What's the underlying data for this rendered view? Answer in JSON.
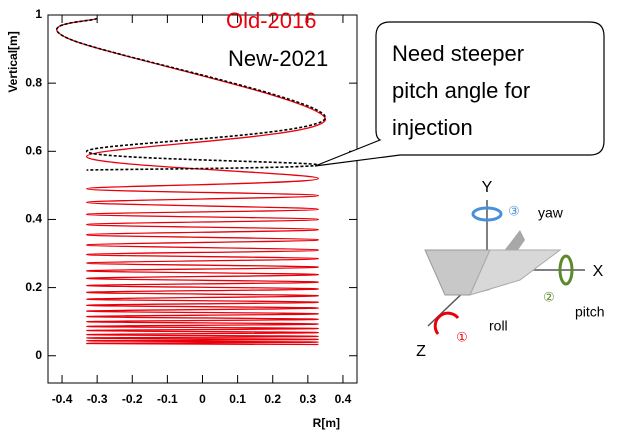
{
  "chart_data": {
    "type": "line",
    "legend": [
      "Old-2016",
      "New-2021"
    ],
    "xlabel": "R[m]",
    "ylabel": "Vertical[m]",
    "xlim": [
      -0.44,
      0.44
    ],
    "xticks": [
      -0.4,
      -0.3,
      -0.2,
      -0.1,
      0,
      0.1,
      0.2,
      0.3,
      0.4
    ],
    "ylim": [
      -0.08,
      1.0
    ],
    "yticks": [
      0,
      0.2,
      0.4,
      0.6,
      0.8,
      1
    ],
    "series": [
      {
        "name": "Old-2016",
        "color": "#e8000b",
        "x": [
          -0.3,
          -0.38,
          0.35,
          -0.33,
          0.33,
          -0.33,
          0.33,
          -0.33,
          0.33,
          -0.33,
          0.33,
          -0.33,
          0.33,
          -0.33,
          0.33,
          -0.33,
          0.33,
          -0.33,
          0.33,
          -0.33,
          0.33,
          -0.33,
          0.33,
          -0.33,
          0.33,
          -0.33,
          0.33,
          -0.33,
          0.33,
          -0.33,
          0.33,
          -0.33,
          0.33,
          -0.33,
          0.33,
          -0.33,
          0.33,
          -0.33,
          0.33,
          -0.33,
          0.33,
          -0.33,
          0.33,
          -0.33,
          0.33,
          -0.33,
          0.33,
          -0.33,
          0.33,
          -0.33,
          0.33
        ],
        "values": [
          0.99,
          0.93,
          0.695,
          0.585,
          0.52,
          0.49,
          0.47,
          0.45,
          0.43,
          0.415,
          0.4,
          0.385,
          0.37,
          0.355,
          0.34,
          0.325,
          0.31,
          0.297,
          0.285,
          0.272,
          0.26,
          0.249,
          0.238,
          0.227,
          0.216,
          0.206,
          0.196,
          0.186,
          0.176,
          0.166,
          0.157,
          0.148,
          0.14,
          0.131,
          0.123,
          0.115,
          0.107,
          0.1,
          0.093,
          0.086,
          0.08,
          0.074,
          0.068,
          0.062,
          0.057,
          0.052,
          0.048,
          0.044,
          0.04,
          0.036,
          0.033
        ]
      },
      {
        "name": "New-2021",
        "color": "#000000",
        "x": [
          -0.3,
          -0.38,
          0.35,
          -0.33,
          0.33,
          -0.33
        ],
        "values": [
          0.99,
          0.93,
          0.7,
          0.6,
          0.56,
          0.545
        ]
      }
    ],
    "callout": [
      "Need steeper",
      "pitch angle for",
      "injection"
    ]
  },
  "diagram": {
    "y_axis": "Y",
    "x_axis": "X",
    "z_axis": "Z",
    "yaw": {
      "number": "③",
      "label": "yaw"
    },
    "pitch": {
      "number": "②",
      "label": "pitch"
    },
    "roll": {
      "number": "①",
      "label": "roll"
    }
  }
}
